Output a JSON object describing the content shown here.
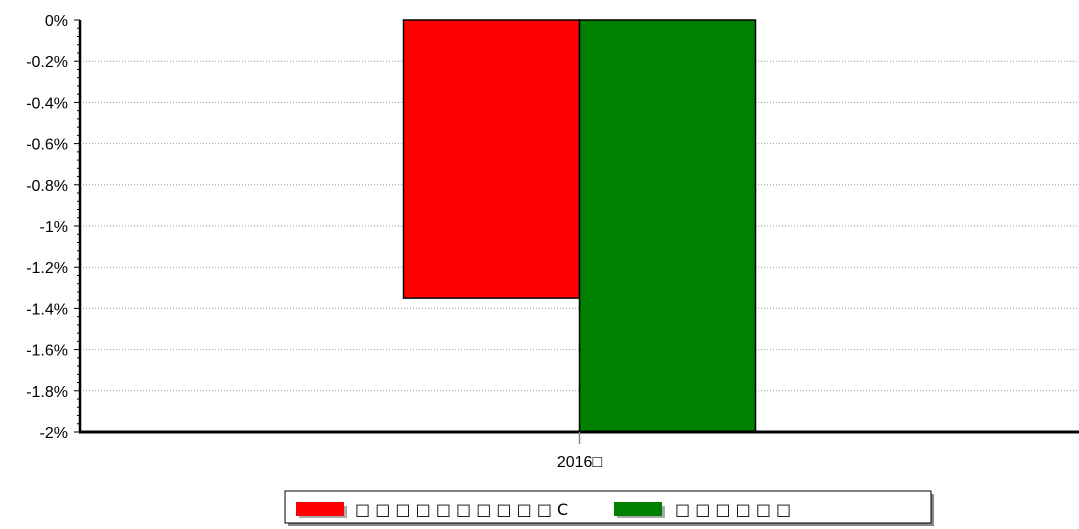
{
  "chart_data": {
    "type": "bar",
    "categories": [
      "2016□"
    ],
    "series": [
      {
        "name": "□ □ □ □ □ □ □ □ □ □ C",
        "color": "#ff0000",
        "values": [
          -1.35
        ]
      },
      {
        "name": "□ □ □ □ □ □",
        "color": "#008000",
        "values": [
          -2.0
        ]
      }
    ],
    "ylim": [
      -2,
      0
    ],
    "yticks": [
      0,
      -0.2,
      -0.4,
      -0.6,
      -0.8,
      -1,
      -1.2,
      -1.4,
      -1.6,
      -1.8,
      -2
    ],
    "ytick_labels": [
      "0%",
      "-0.2%",
      "-0.4%",
      "-0.6%",
      "-0.8%",
      "-1%",
      "-1.2%",
      "-1.4%",
      "-1.6%",
      "-1.8%",
      "-2%"
    ],
    "grid": true,
    "legend_position": "bottom-center"
  }
}
